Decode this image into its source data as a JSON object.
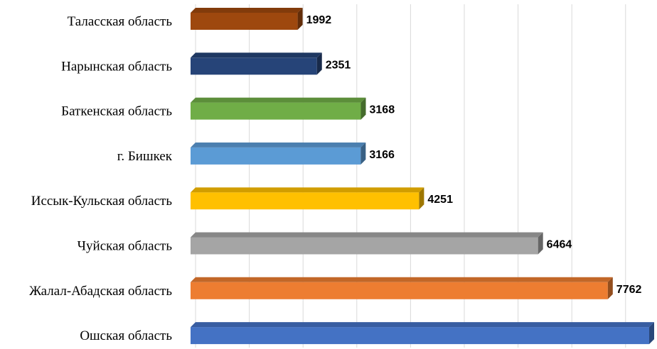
{
  "chart_data": {
    "type": "bar",
    "orientation": "horizontal",
    "style": "3d",
    "categories": [
      "Таласская область",
      "Нарынская область",
      "Баткенская область",
      "г. Бишкек",
      "Иссык-Кульская область",
      "Чуйская область",
      "Жалал-Абадская область",
      "Ошская область"
    ],
    "values": [
      1992,
      2351,
      3168,
      3166,
      4251,
      6464,
      7762,
      null
    ],
    "value_labels": [
      "1992",
      "2351",
      "3168",
      "3166",
      "4251",
      "6464",
      "7762",
      ""
    ],
    "colors": [
      "#9e480e",
      "#264478",
      "#70ad47",
      "#5b9bd5",
      "#ffc000",
      "#a5a5a5",
      "#ed7d31",
      "#4472c4"
    ],
    "xlim": [
      0,
      8500
    ],
    "grid": true,
    "title": "",
    "xlabel": "",
    "ylabel": ""
  }
}
